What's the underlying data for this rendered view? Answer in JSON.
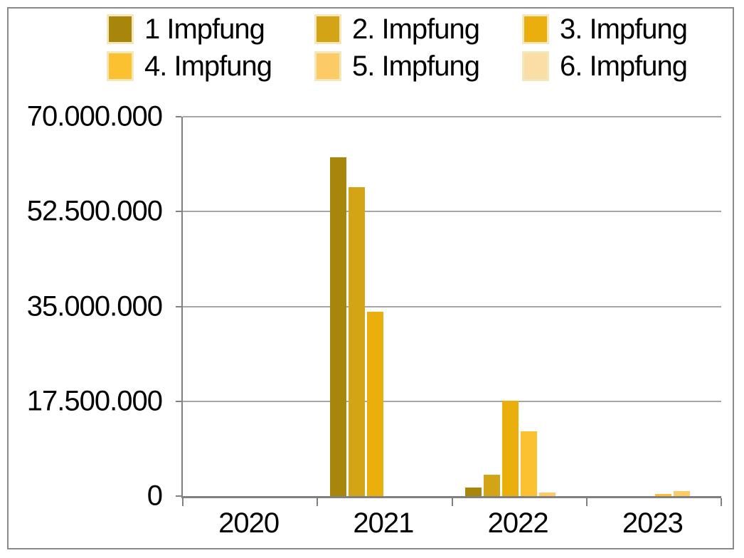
{
  "frame": {
    "border_color": "#8a8a8a",
    "background": "#ffffff",
    "gridline_color": "#a6a6a6",
    "axis_color": "#808080",
    "swatch_border_color": "#f4e6bd"
  },
  "chart_data": {
    "type": "bar",
    "title": "",
    "xlabel": "",
    "ylabel": "",
    "grid": true,
    "legend_position": "top",
    "categories": [
      "2020",
      "2021",
      "2022",
      "2023"
    ],
    "series": [
      {
        "name": "1 Impfung",
        "color": "#A8860B",
        "values": [
          0,
          62500000,
          1600000,
          0
        ]
      },
      {
        "name": "2. Impfung",
        "color": "#D4A417",
        "values": [
          0,
          57000000,
          4000000,
          0
        ]
      },
      {
        "name": "3. Impfung",
        "color": "#EBAF0D",
        "values": [
          0,
          34000000,
          17600000,
          0
        ]
      },
      {
        "name": "4. Impfung",
        "color": "#FCC130",
        "values": [
          0,
          0,
          11900000,
          400000
        ]
      },
      {
        "name": "5. Impfung",
        "color": "#FDCB65",
        "values": [
          0,
          0,
          600000,
          900000
        ]
      },
      {
        "name": "6. Impfung",
        "color": "#FADEA6",
        "values": [
          0,
          0,
          0,
          0
        ]
      }
    ],
    "ylim": [
      0,
      70000000
    ],
    "y_ticks": [
      {
        "value": 70000000,
        "label": "70.000.000"
      },
      {
        "value": 52500000,
        "label": "52.500.000"
      },
      {
        "value": 35000000,
        "label": "35.000.000"
      },
      {
        "value": 17500000,
        "label": "17.500.000"
      },
      {
        "value": 0,
        "label": "0"
      }
    ]
  }
}
